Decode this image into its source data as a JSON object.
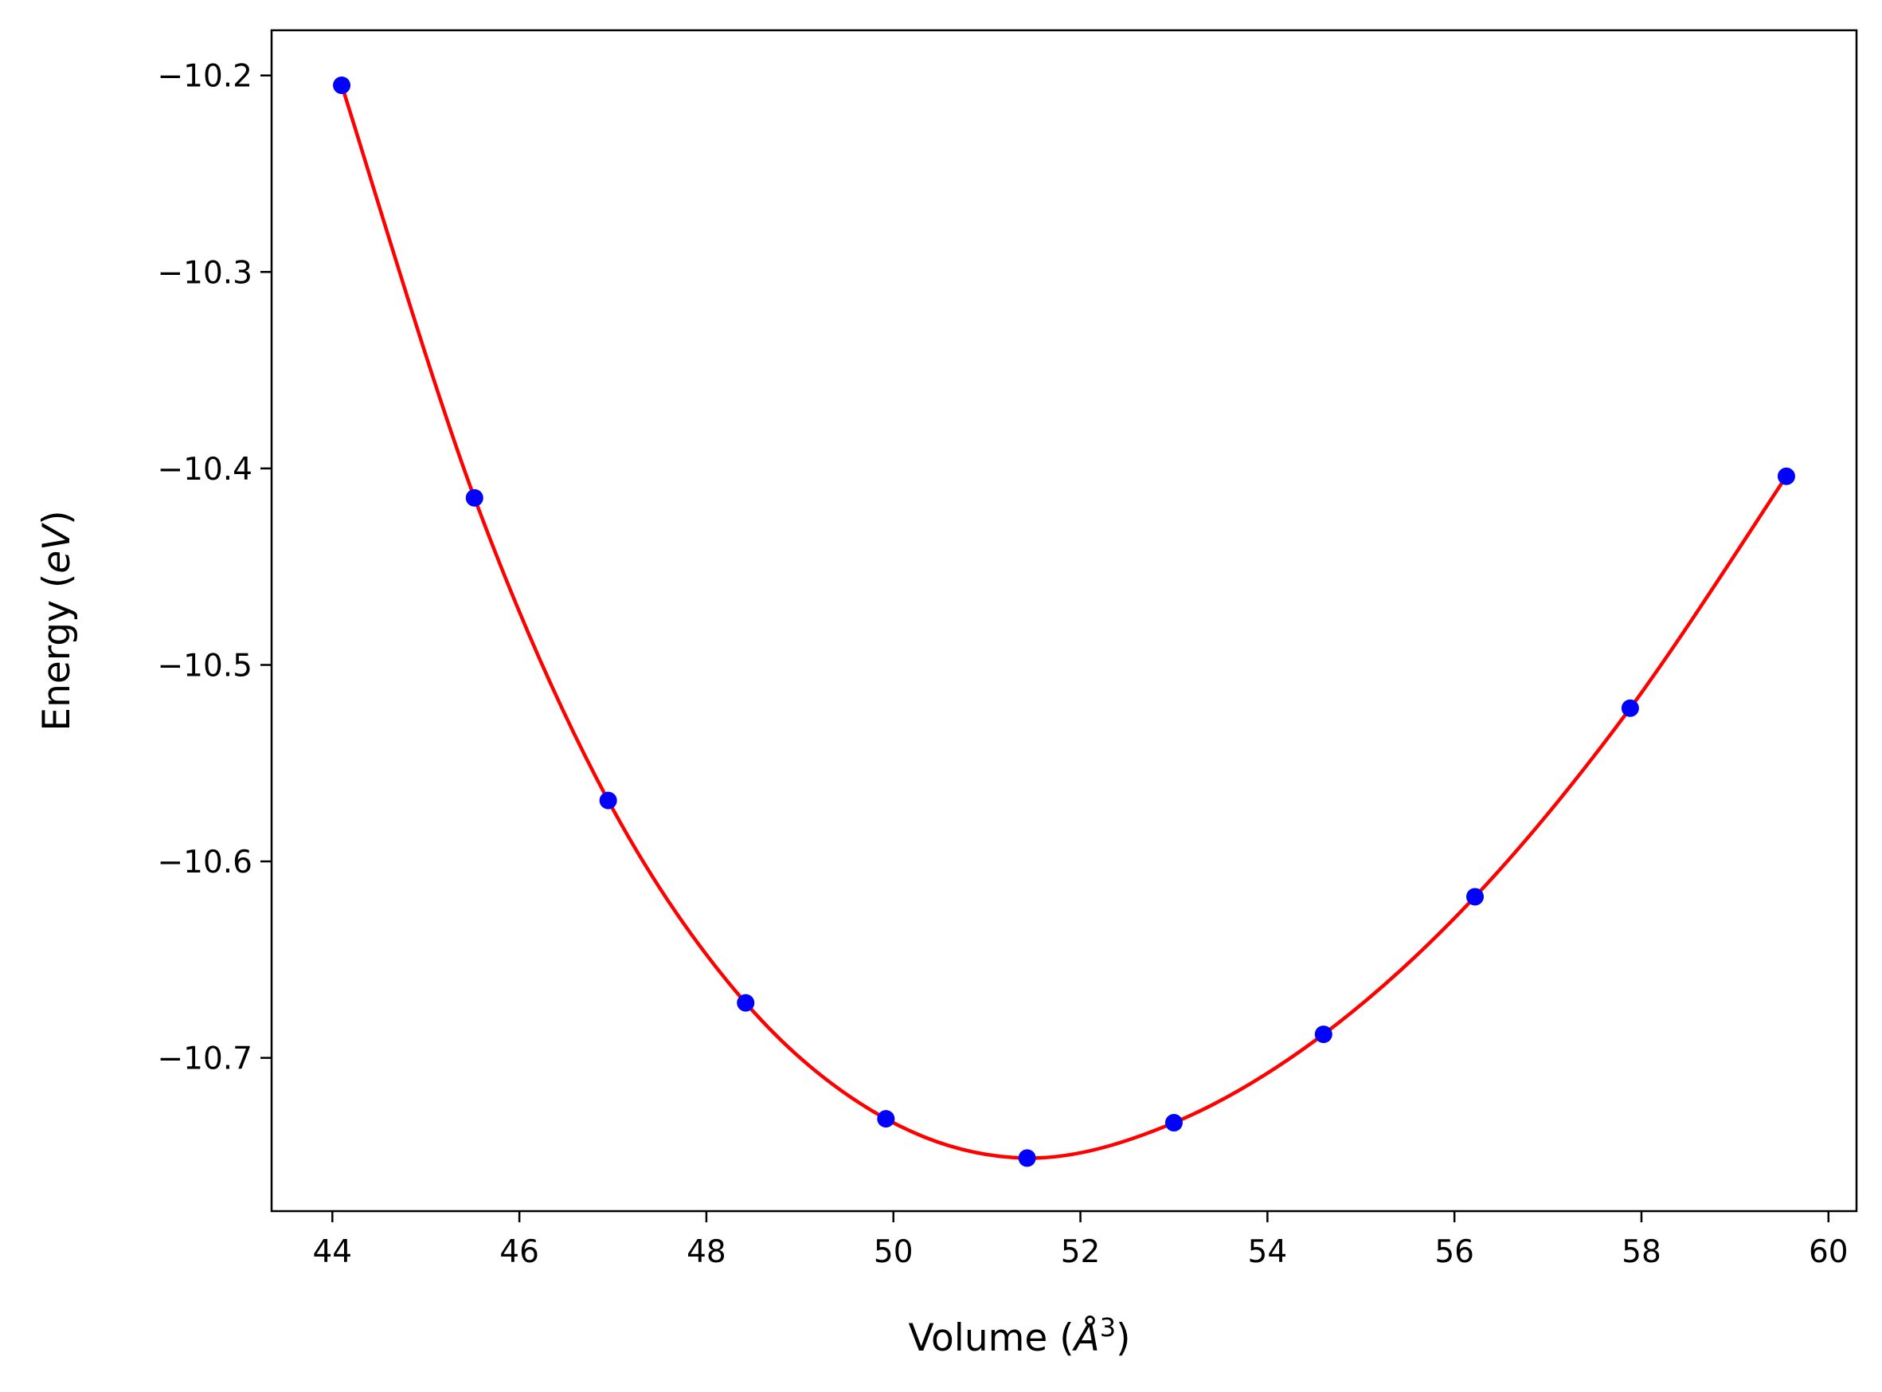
{
  "chart_data": {
    "type": "scatter",
    "xlabel": "Volume (",
    "xlabel_unit": "Å",
    "xlabel_exp": "3",
    "xlabel_close": ")",
    "ylabel": "Energy (",
    "ylabel_unit": "eV",
    "ylabel_close": ")",
    "xlim": [
      43.35,
      60.3
    ],
    "ylim": [
      -10.778,
      -10.177
    ],
    "xticks": [
      44,
      46,
      48,
      50,
      52,
      54,
      56,
      58,
      60
    ],
    "xtick_labels": [
      "44",
      "46",
      "48",
      "50",
      "52",
      "54",
      "56",
      "58",
      "60"
    ],
    "yticks": [
      -10.2,
      -10.3,
      -10.4,
      -10.5,
      -10.6,
      -10.7
    ],
    "ytick_labels": [
      "−10.2",
      "−10.3",
      "−10.4",
      "−10.5",
      "−10.6",
      "−10.7"
    ],
    "grid": false,
    "series": [
      {
        "kind": "points",
        "color": "#0000ff",
        "x": [
          44.1,
          45.52,
          46.95,
          48.42,
          49.92,
          51.43,
          53.0,
          54.6,
          56.22,
          57.88,
          59.55
        ],
        "y": [
          -10.205,
          -10.415,
          -10.569,
          -10.672,
          -10.731,
          -10.751,
          -10.733,
          -10.688,
          -10.618,
          -10.522,
          -10.404
        ]
      },
      {
        "kind": "fit-curve",
        "color": "#ff0000",
        "x": [
          44.1,
          59.55
        ]
      }
    ]
  }
}
